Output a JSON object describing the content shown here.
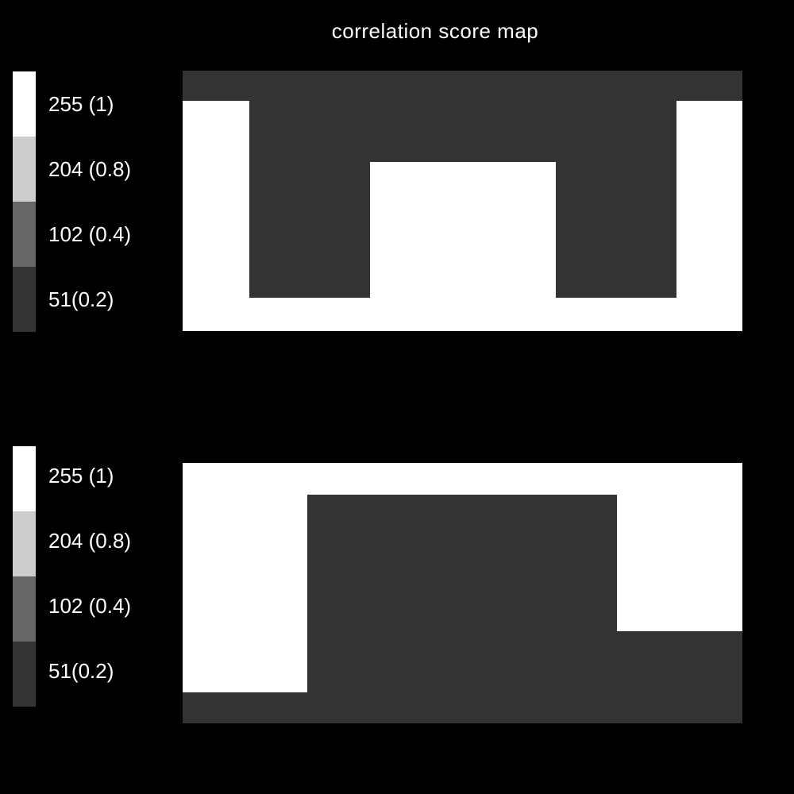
{
  "title": "correlation score map",
  "colors": {
    "background": "#000000",
    "high": "#ffffff",
    "low": "#333333"
  },
  "legend": [
    {
      "label": "255 (1)",
      "color": "#ffffff"
    },
    {
      "label": "204 (0.8)",
      "color": "#cccccc"
    },
    {
      "label": "102 (0.4)",
      "color": "#666666"
    },
    {
      "label": "51(0.2)",
      "color": "#333333"
    }
  ]
}
